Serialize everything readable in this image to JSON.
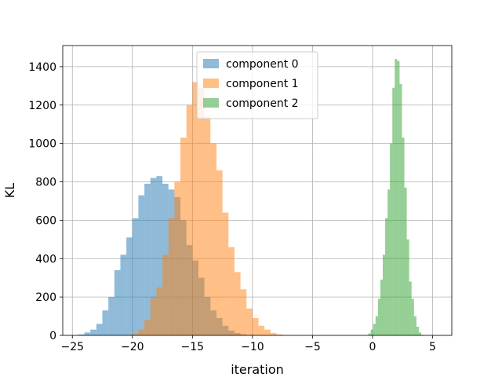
{
  "chart_data": {
    "type": "bar",
    "title": "",
    "xlabel": "iteration",
    "ylabel": "KL",
    "xlim": [
      -25.8,
      6.6
    ],
    "ylim": [
      0,
      1510
    ],
    "xticks": [
      -25,
      -20,
      -15,
      -10,
      -5,
      0,
      5
    ],
    "yticks": [
      0,
      200,
      400,
      600,
      800,
      1000,
      1200,
      1400
    ],
    "grid": true,
    "legend": "upper-center",
    "bin_width": 0.5,
    "series": [
      {
        "name": "component 0",
        "color": "#1f77b4",
        "opacity": 0.5,
        "start": -24.5,
        "values": [
          5,
          15,
          30,
          60,
          130,
          200,
          340,
          420,
          510,
          610,
          730,
          790,
          820,
          830,
          790,
          760,
          720,
          600,
          470,
          390,
          300,
          200,
          130,
          90,
          50,
          25,
          12,
          6,
          2,
          1
        ]
      },
      {
        "name": "component 1",
        "color": "#ff7f0e",
        "opacity": 0.5,
        "start": -20.5,
        "values": [
          3,
          8,
          30,
          80,
          200,
          250,
          420,
          610,
          800,
          1030,
          1200,
          1320,
          1290,
          1140,
          1000,
          860,
          640,
          460,
          330,
          240,
          140,
          90,
          50,
          30,
          12,
          5
        ]
      },
      {
        "name": "component 2",
        "color": "#2ca02c",
        "opacity": 0.5,
        "start": -0.35,
        "bin_width": 0.2,
        "values": [
          10,
          30,
          60,
          100,
          190,
          290,
          420,
          610,
          760,
          1000,
          1290,
          1440,
          1430,
          1310,
          1030,
          770,
          500,
          280,
          190,
          100,
          45,
          15,
          3
        ]
      }
    ]
  }
}
